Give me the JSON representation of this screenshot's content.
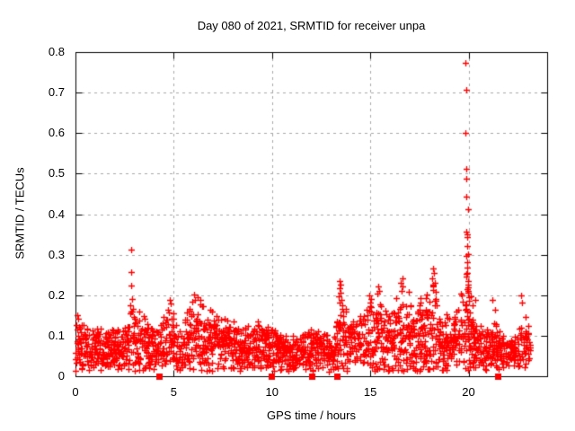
{
  "chart_data": {
    "type": "scatter",
    "title": "Day 080 of 2021, SRMTID for receiver unpa",
    "xlabel": "GPS time / hours",
    "ylabel": "SRMTID / TECUs",
    "xlim": [
      0,
      24
    ],
    "ylim": [
      0,
      0.8
    ],
    "xticks": [
      {
        "v": 0,
        "label": "0"
      },
      {
        "v": 5,
        "label": "5"
      },
      {
        "v": 10,
        "label": "10"
      },
      {
        "v": 15,
        "label": "15"
      },
      {
        "v": 20,
        "label": "20"
      }
    ],
    "yticks": [
      {
        "v": 0,
        "label": "0"
      },
      {
        "v": 0.1,
        "label": "0.1"
      },
      {
        "v": 0.2,
        "label": "0.2"
      },
      {
        "v": 0.3,
        "label": "0.3"
      },
      {
        "v": 0.4,
        "label": "0.4"
      },
      {
        "v": 0.5,
        "label": "0.5"
      },
      {
        "v": 0.6,
        "label": "0.6"
      },
      {
        "v": 0.7,
        "label": "0.7"
      },
      {
        "v": 0.8,
        "label": "0.8"
      }
    ],
    "grid": {
      "on": true,
      "style": "dashed",
      "color": "#a9a9a9"
    },
    "frame_color": "#000000",
    "background": "#ffffff",
    "marker": {
      "shape": "plus",
      "color": "#ff0000",
      "size": 7
    },
    "x_start": 0,
    "x_end": 23.2,
    "seed": 8021,
    "column_step_hours": 0.1,
    "points_per_column": [
      6,
      12
    ],
    "band_floor": 0.03,
    "envelope": [
      [
        0,
        0.15
      ],
      [
        0.4,
        0.135
      ],
      [
        1,
        0.12
      ],
      [
        1.8,
        0.115
      ],
      [
        2.4,
        0.12
      ],
      [
        2.8,
        0.16
      ],
      [
        3.2,
        0.165
      ],
      [
        3.7,
        0.14
      ],
      [
        4.2,
        0.125
      ],
      [
        4.7,
        0.17
      ],
      [
        5.1,
        0.15
      ],
      [
        5.5,
        0.14
      ],
      [
        5.9,
        0.19
      ],
      [
        6.3,
        0.195
      ],
      [
        6.8,
        0.17
      ],
      [
        7.2,
        0.15
      ],
      [
        7.8,
        0.14
      ],
      [
        8.4,
        0.13
      ],
      [
        9.0,
        0.15
      ],
      [
        9.6,
        0.13
      ],
      [
        10.2,
        0.12
      ],
      [
        10.8,
        0.105
      ],
      [
        11.4,
        0.1
      ],
      [
        12.0,
        0.115
      ],
      [
        12.6,
        0.12
      ],
      [
        13.1,
        0.09
      ],
      [
        13.45,
        0.21
      ],
      [
        13.8,
        0.165
      ],
      [
        14.3,
        0.14
      ],
      [
        14.9,
        0.18
      ],
      [
        15.3,
        0.2
      ],
      [
        15.8,
        0.165
      ],
      [
        16.2,
        0.185
      ],
      [
        16.6,
        0.22
      ],
      [
        17.0,
        0.18
      ],
      [
        17.5,
        0.19
      ],
      [
        18.2,
        0.24
      ],
      [
        18.6,
        0.155
      ],
      [
        19.1,
        0.165
      ],
      [
        19.55,
        0.19
      ],
      [
        19.85,
        0.27
      ],
      [
        20.1,
        0.21
      ],
      [
        20.45,
        0.14
      ],
      [
        20.9,
        0.115
      ],
      [
        21.3,
        0.15
      ],
      [
        21.8,
        0.1
      ],
      [
        22.3,
        0.1
      ],
      [
        22.75,
        0.135
      ],
      [
        23.0,
        0.12
      ],
      [
        23.2,
        0.1
      ]
    ],
    "outliers": [
      [
        2.84,
        0.312
      ],
      [
        2.84,
        0.257
      ],
      [
        2.85,
        0.224
      ],
      [
        2.88,
        0.19
      ],
      [
        2.8,
        0.176
      ],
      [
        2.92,
        0.166
      ],
      [
        19.85,
        0.774
      ],
      [
        19.87,
        0.707
      ],
      [
        19.86,
        0.601
      ],
      [
        19.88,
        0.512
      ],
      [
        19.88,
        0.488
      ],
      [
        19.89,
        0.443
      ],
      [
        19.96,
        0.412
      ],
      [
        19.9,
        0.357
      ],
      [
        19.92,
        0.35
      ],
      [
        19.91,
        0.344
      ],
      [
        19.94,
        0.322
      ],
      [
        19.88,
        0.297
      ],
      [
        19.97,
        0.302
      ],
      [
        19.91,
        0.282
      ],
      [
        19.93,
        0.268
      ],
      [
        19.95,
        0.255
      ],
      [
        19.9,
        0.245
      ],
      [
        19.96,
        0.235
      ],
      [
        19.98,
        0.227
      ],
      [
        19.92,
        0.215
      ],
      [
        19.99,
        0.205
      ],
      [
        20.01,
        0.196
      ],
      [
        20.03,
        0.186
      ],
      [
        13.42,
        0.234
      ],
      [
        13.47,
        0.227
      ],
      [
        13.44,
        0.217
      ],
      [
        13.5,
        0.207
      ],
      [
        13.4,
        0.197
      ],
      [
        13.53,
        0.189
      ],
      [
        13.46,
        0.181
      ],
      [
        13.56,
        0.174
      ],
      [
        16.62,
        0.241
      ],
      [
        16.57,
        0.231
      ],
      [
        16.66,
        0.221
      ],
      [
        16.6,
        0.211
      ],
      [
        16.95,
        0.209
      ],
      [
        15.42,
        0.221
      ],
      [
        15.47,
        0.211
      ],
      [
        15.38,
        0.204
      ],
      [
        18.18,
        0.267
      ],
      [
        18.22,
        0.254
      ],
      [
        18.15,
        0.242
      ],
      [
        18.28,
        0.231
      ],
      [
        18.2,
        0.221
      ],
      [
        18.32,
        0.209
      ],
      [
        6.05,
        0.201
      ],
      [
        6.2,
        0.195
      ],
      [
        6.35,
        0.189
      ],
      [
        5.92,
        0.184
      ],
      [
        4.78,
        0.189
      ],
      [
        4.85,
        0.179
      ],
      [
        14.95,
        0.199
      ],
      [
        15.02,
        0.19
      ],
      [
        20.32,
        0.189
      ],
      [
        21.2,
        0.189
      ],
      [
        21.35,
        0.164
      ],
      [
        22.68,
        0.199
      ],
      [
        22.74,
        0.181
      ],
      [
        22.88,
        0.147
      ],
      [
        23.02,
        0.124
      ],
      [
        0.08,
        0.151
      ],
      [
        0.14,
        0.142
      ]
    ],
    "zero_markers": [
      4.25,
      9.97,
      12.02,
      13.28,
      21.47
    ]
  }
}
